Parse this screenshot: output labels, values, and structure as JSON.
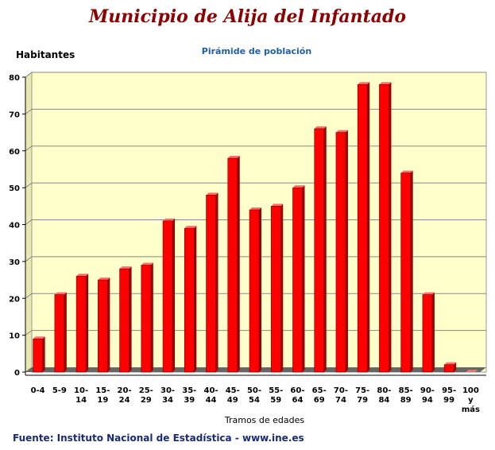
{
  "header": {
    "title": "Municipio de Alija del Infantado"
  },
  "chart_data": {
    "type": "bar",
    "title": "Pirámide de población",
    "ylabel": "Habitantes",
    "xlabel": "Tramos de edades",
    "ylim": [
      0,
      80
    ],
    "yticks": [
      "0",
      "10",
      "20",
      "30",
      "40",
      "50",
      "60",
      "70",
      "80"
    ],
    "grid": true,
    "legend": "none",
    "categories": [
      [
        "0-4"
      ],
      [
        "5-9"
      ],
      [
        "10-",
        "14"
      ],
      [
        "15-",
        "19"
      ],
      [
        "20-",
        "24"
      ],
      [
        "25-",
        "29"
      ],
      [
        "30-",
        "34"
      ],
      [
        "35-",
        "39"
      ],
      [
        "40-",
        "44"
      ],
      [
        "45-",
        "49"
      ],
      [
        "50-",
        "54"
      ],
      [
        "55-",
        "59"
      ],
      [
        "60-",
        "64"
      ],
      [
        "65-",
        "69"
      ],
      [
        "70-",
        "74"
      ],
      [
        "75-",
        "79"
      ],
      [
        "80-",
        "84"
      ],
      [
        "85-",
        "89"
      ],
      [
        "90-",
        "94"
      ],
      [
        "95-",
        "99"
      ],
      [
        "100",
        "y",
        "más"
      ]
    ],
    "values": [
      9,
      21,
      26,
      25,
      28,
      29,
      41,
      39,
      48,
      58,
      44,
      45,
      50,
      66,
      65,
      78,
      78,
      54,
      21,
      2,
      0
    ],
    "colors": {
      "bar": "#ff0000",
      "bar_side": "#990000",
      "bar_top": "#ff6a6a",
      "plot_bg": "#ffffcc",
      "floor": "#666666",
      "grid": "#888888"
    }
  },
  "footer": {
    "source": "Fuente: Instituto Nacional de Estadística - www.ine.es"
  }
}
